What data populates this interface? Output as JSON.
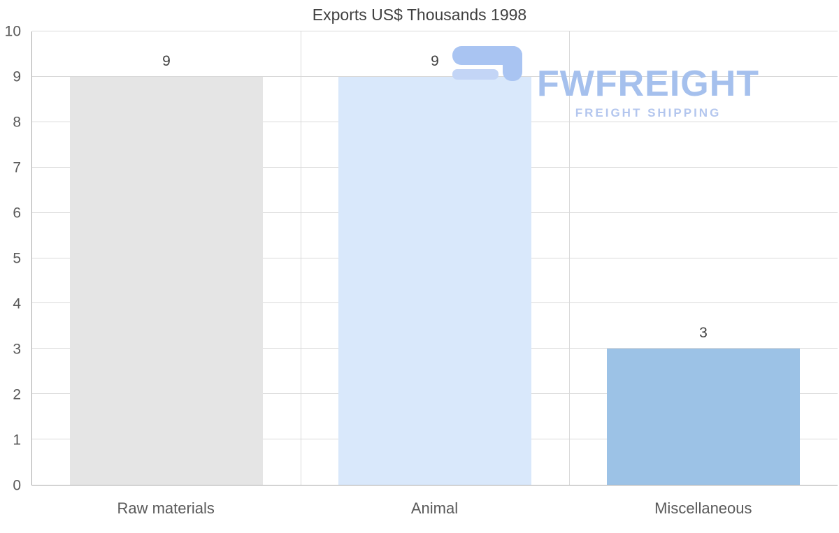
{
  "chart_data": {
    "type": "bar",
    "title": "Exports US$ Thousands 1998",
    "categories": [
      "Raw materials",
      "Animal",
      "Miscellaneous"
    ],
    "values": [
      9,
      9,
      3
    ],
    "bar_colors": [
      "#e5e5e5",
      "#d9e8fb",
      "#9cc2e6"
    ],
    "xlabel": "",
    "ylabel": "",
    "ylim": [
      0,
      10
    ],
    "ytick_step": 1,
    "grid": true,
    "legend": "none"
  },
  "watermark": {
    "brand": "FWFREIGHT",
    "tagline": "FREIGHT SHIPPING",
    "color": "#a5c0ed",
    "tagline_color": "#b3c6ee"
  },
  "colors": {
    "grid": "#d9d9d9",
    "axis": "#a6a6a6",
    "text": "#595959",
    "title": "#404040"
  }
}
